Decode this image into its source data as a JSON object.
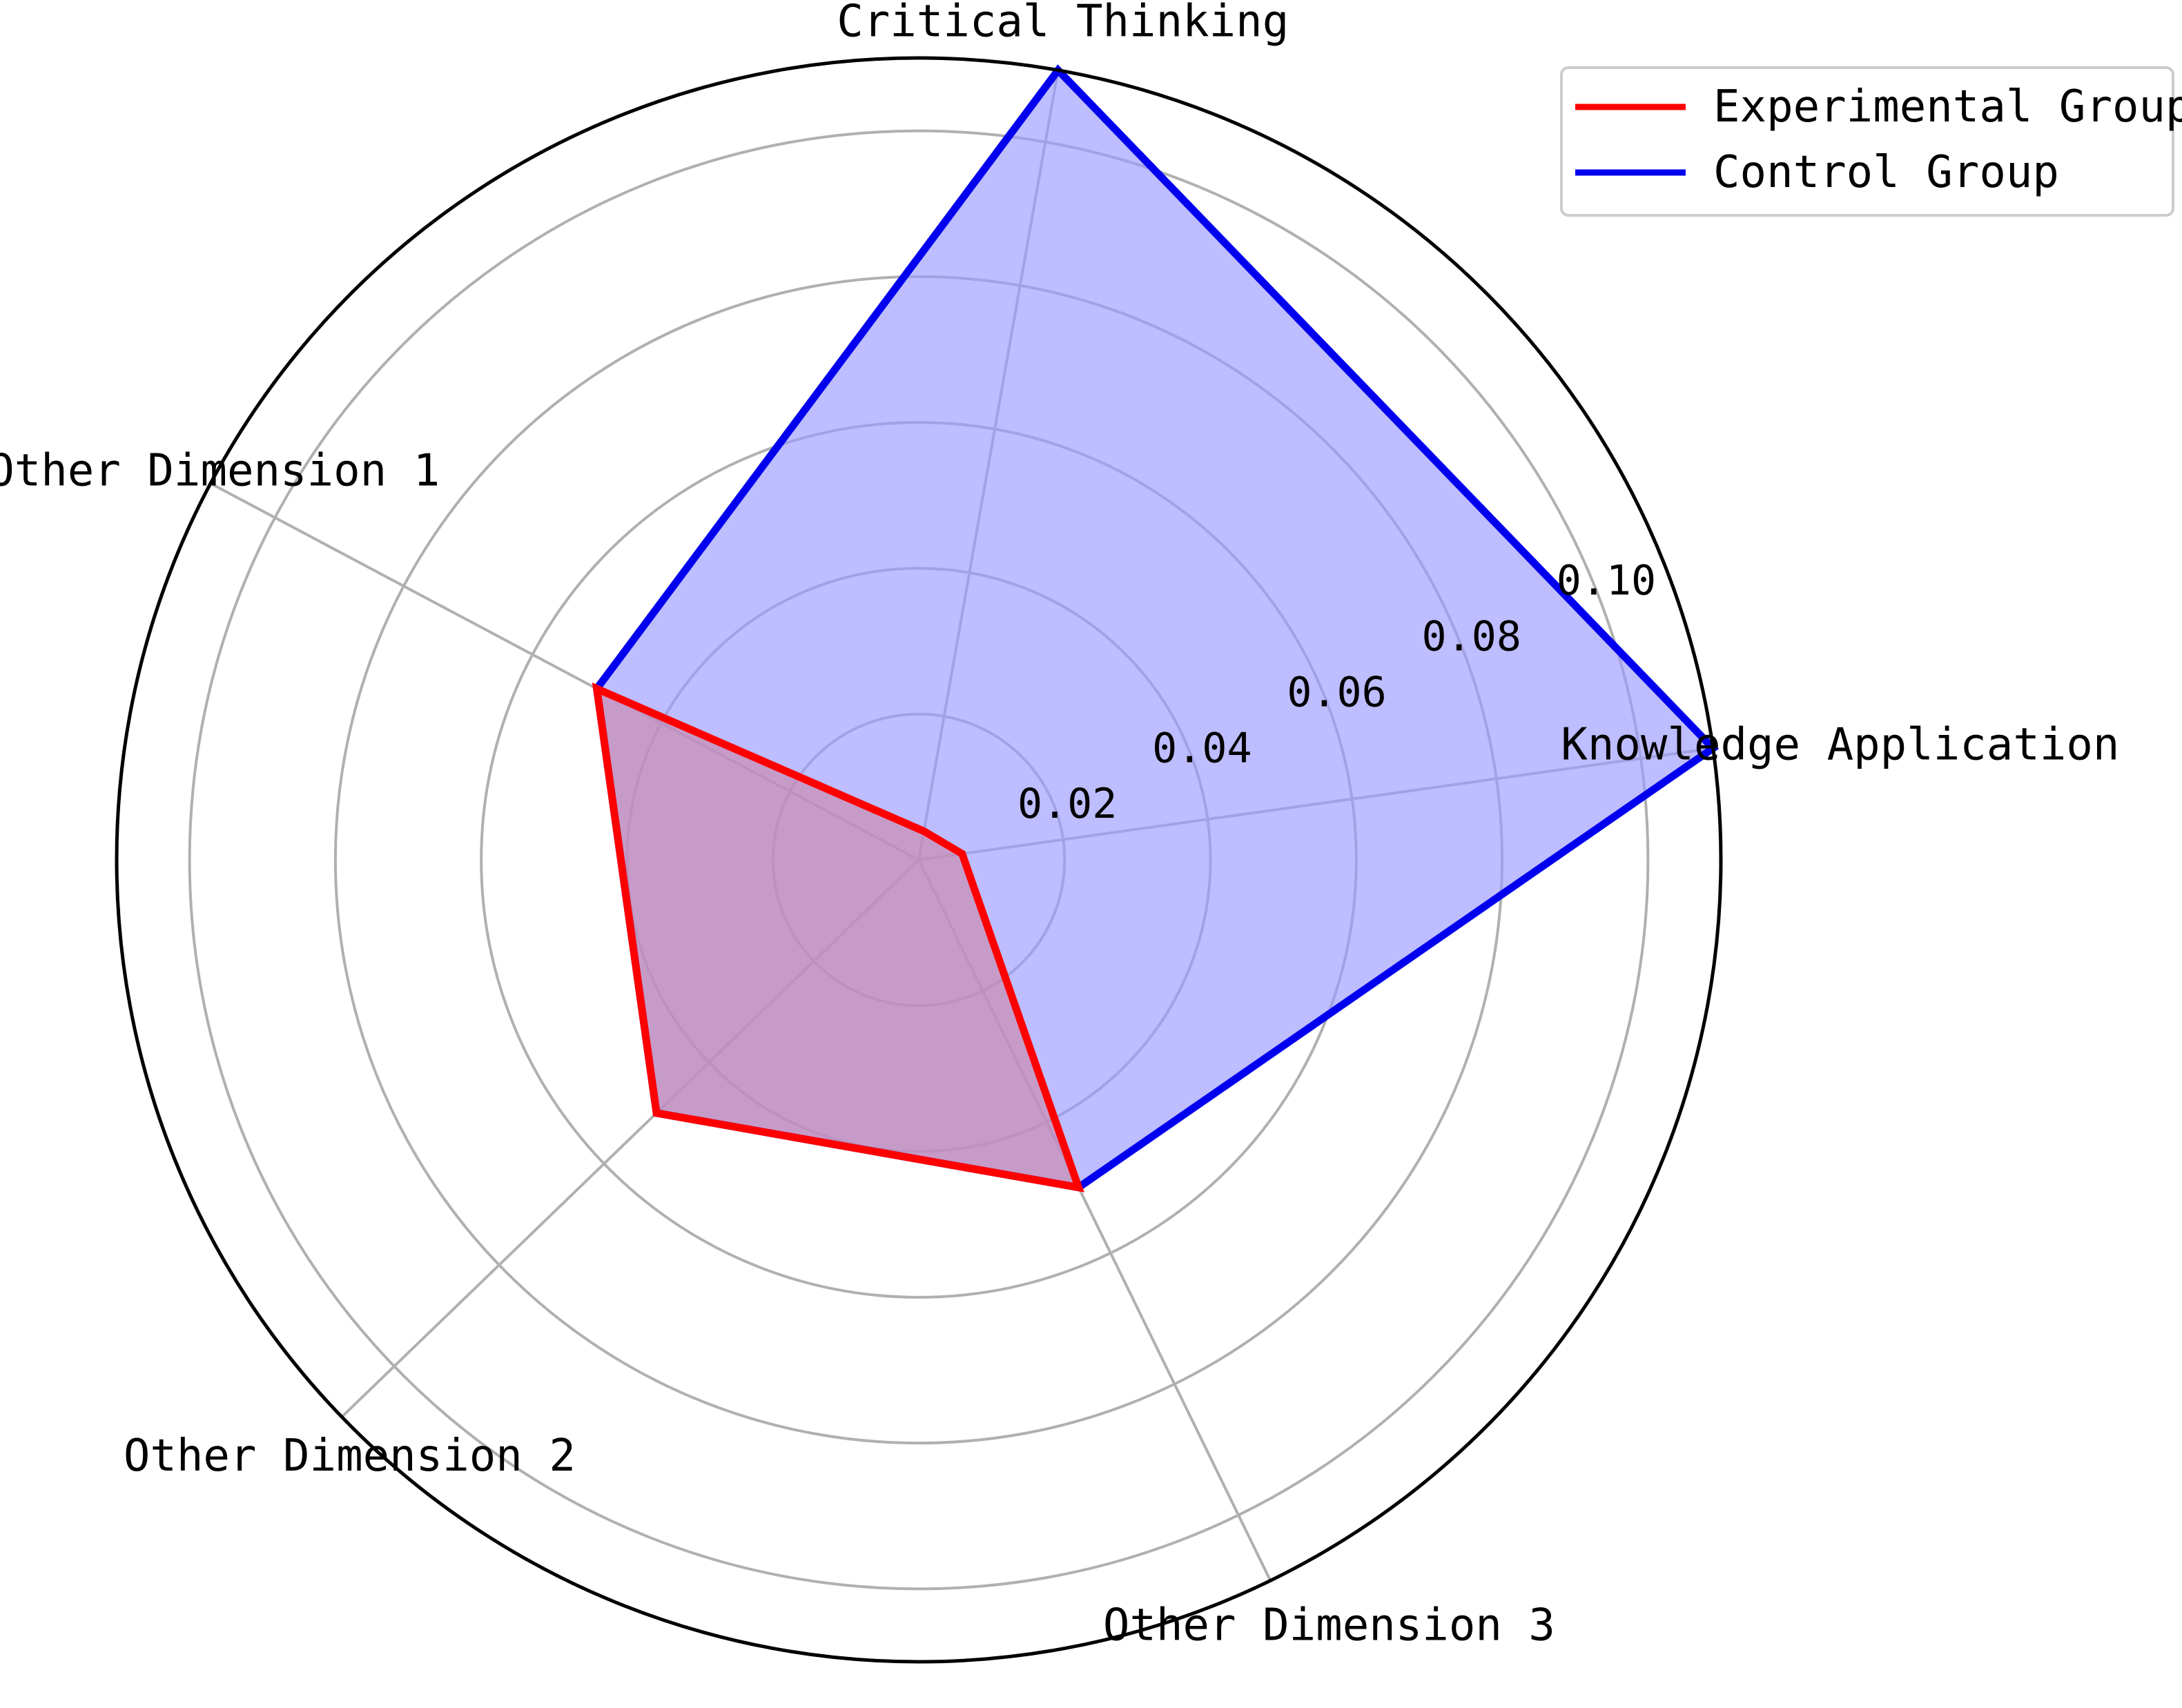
{
  "chart_data": {
    "type": "radar",
    "title": "",
    "categories": [
      "Knowledge Application",
      "Critical Thinking",
      "Other Dimension 1",
      "Other Dimension 2",
      "Other Dimension 3"
    ],
    "series": [
      {
        "name": "Experimental Group",
        "values": [
          0.006,
          0.004,
          0.05,
          0.05,
          0.05
        ],
        "line_color": "#ff0000",
        "fill_color": "#cc88aa"
      },
      {
        "name": "Control Group",
        "values": [
          0.11,
          0.11,
          0.05,
          0.05,
          0.05
        ],
        "line_color": "#0000ee",
        "fill_color": "#9999ff"
      }
    ],
    "radial_ticks": [
      0.02,
      0.04,
      0.06,
      0.08,
      0.1
    ],
    "radial_tick_labels": [
      "0.02",
      "0.04",
      "0.06",
      "0.08",
      "0.10"
    ],
    "rlim": [
      0,
      0.11
    ],
    "grid": true,
    "legend_position": "top-right"
  }
}
